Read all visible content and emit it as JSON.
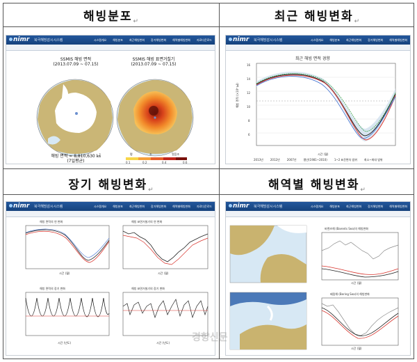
{
  "cells": {
    "distribution": {
      "title": "해빙분포",
      "mark": "↵"
    },
    "recent": {
      "title": "최근 해빙변화",
      "mark": "↵"
    },
    "longterm": {
      "title": "장기 해빙변화",
      "mark": "↵"
    },
    "regional": {
      "title": "해역별 해빙변화",
      "mark": "↵"
    }
  },
  "app": {
    "logo": "nimr",
    "system_name": "북극해빙감시시스템",
    "nav": [
      "시스템개요",
      "해빙분포",
      "최근해빙변화",
      "장기해빙변화",
      "해역별해빙변화",
      "자료다운로드"
    ]
  },
  "distribution": {
    "map1_title": "SSMIS 해빙 면적",
    "map1_dates": "(2013.07.09 ~ 07.15)",
    "map2_title": "SSMIS 해빙 표면거칠기",
    "map2_dates": "(2013.07.09 ~ 07.15)",
    "area_label": "해빙 면적 = 8,810,630 ㎢",
    "area_sub": "(7일평균)",
    "scale_words": [
      "평",
      "조",
      "얼음조"
    ],
    "scale_ticks": [
      "0.1",
      "0.2",
      "0.4",
      "0.6"
    ]
  },
  "recent": {
    "chart_title": "최근 해빙 면적 경향",
    "ylabel": "해빙 면적 (×10⁶ ㎢)",
    "xlabel": "시간 (월)",
    "legend": [
      "2013년",
      "2012년",
      "2007년",
      "평년(1981~2010)",
      "1~2 표준편차 범위",
      "최소~최대 범위"
    ]
  },
  "longterm": {
    "tl_title": "해빙 면적의 연 변화",
    "tr_title": "해빙 표면거칠기의 연 변화",
    "bl_title": "해빙 면적의 장기 변화",
    "br_title": "해빙 표면거칠기의 장기 변화",
    "month_axis": "시간 (월)",
    "year_axis": "시간 (년도)"
  },
  "regional": {
    "chart1_title": "바렌츠해 (Barents Sea)의 해빙변화",
    "chart2_title": "베링해 (Bering Sea)의 해빙변화",
    "month_axis": "시간 (월)"
  },
  "watermark": "경향신문",
  "colors": {
    "header": "#1e4f90",
    "ocean": "#d7e8f4",
    "land": "#c9b36f",
    "ice": "#ffffff",
    "accent_red": "#d8322b"
  }
}
